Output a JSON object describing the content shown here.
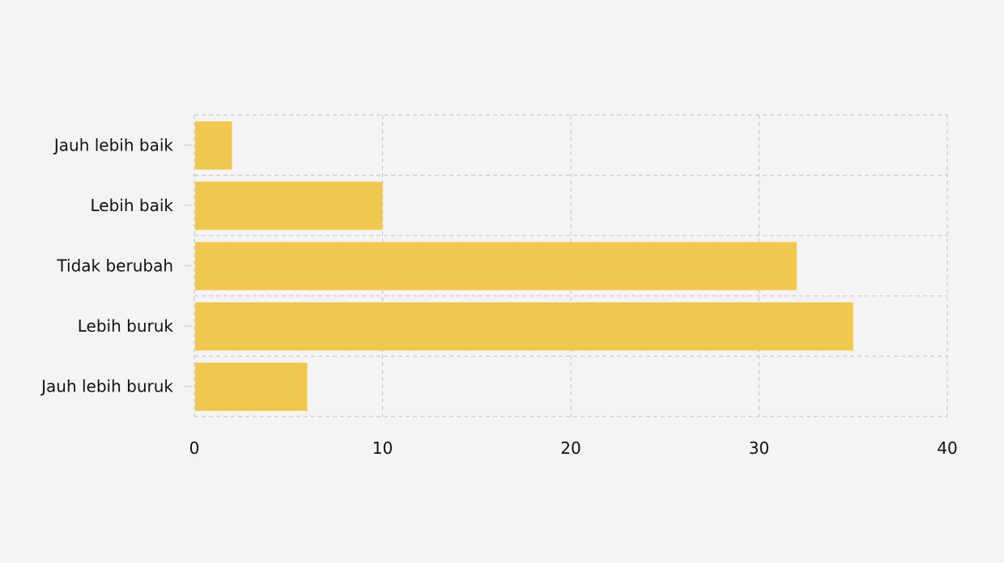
{
  "chart_data": {
    "type": "bar",
    "orientation": "horizontal",
    "categories": [
      "Jauh lebih baik",
      "Lebih baik",
      "Tidak berubah",
      "Lebih buruk",
      "Jauh lebih buruk"
    ],
    "values": [
      2,
      10,
      32,
      35,
      6
    ],
    "xlim": [
      0,
      40
    ],
    "xticks": [
      "0",
      "10",
      "20",
      "30",
      "40"
    ],
    "title": "",
    "xlabel": "",
    "ylabel": "",
    "grid": true,
    "legend": "none",
    "colors": {
      "bar": "#f0c84f",
      "background": "#f4f4f4",
      "grid": "#c8c8c8",
      "text": "#111111"
    }
  }
}
